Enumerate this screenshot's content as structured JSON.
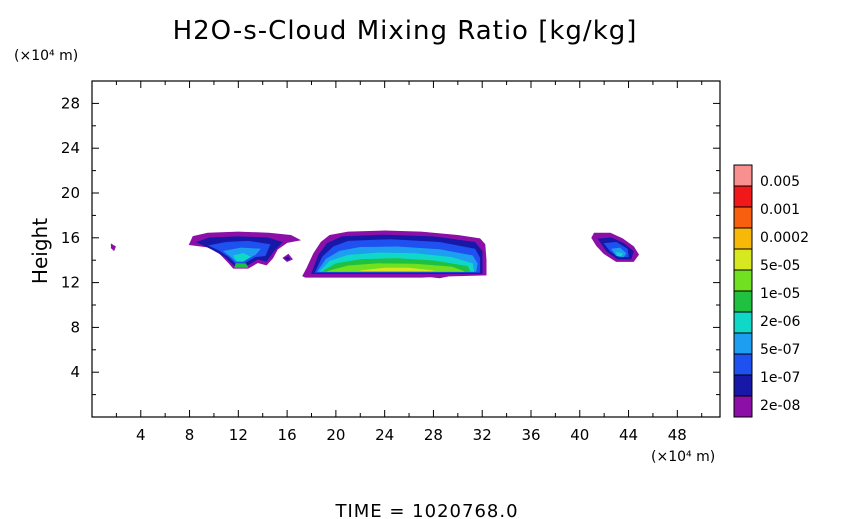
{
  "chart_data": {
    "type": "heatmap",
    "title": "H2O-s-Cloud Mixing Ratio [kg/kg]",
    "xlabel": "",
    "ylabel": "Height",
    "x_unit": "(×10⁴ m)",
    "y_unit": "(×10⁴ m)",
    "xlim": [
      0,
      51.5
    ],
    "ylim": [
      0,
      30
    ],
    "x_ticks": [
      "4",
      "8",
      "12",
      "16",
      "20",
      "24",
      "28",
      "32",
      "36",
      "40",
      "44",
      "48"
    ],
    "y_ticks": [
      "4",
      "8",
      "12",
      "16",
      "20",
      "24",
      "28"
    ],
    "footer": "TIME = 1020768.0",
    "colorbar": {
      "labels": [
        "0.005",
        "0.001",
        "0.0002",
        "5e-05",
        "1e-05",
        "2e-06",
        "5e-07",
        "1e-07",
        "2e-08"
      ],
      "colors": [
        "#8c10a8",
        "#1818a8",
        "#1f50f0",
        "#1e9ef0",
        "#10d8c8",
        "#20c040",
        "#70e020",
        "#d8e820",
        "#f8b808",
        "#f86010",
        "#f01818",
        "#f89090"
      ]
    },
    "cloud_regions": [
      {
        "name": "small-cell",
        "outline": [
          [
            1.6,
            15.4
          ],
          [
            1.9,
            15.2
          ],
          [
            1.8,
            14.9
          ],
          [
            1.6,
            15.1
          ]
        ],
        "bands": []
      },
      {
        "name": "left-cloud",
        "outline": [
          [
            8.0,
            15.4
          ],
          [
            8.3,
            16.1
          ],
          [
            9.5,
            16.4
          ],
          [
            12.0,
            16.5
          ],
          [
            14.5,
            16.4
          ],
          [
            16.3,
            16.2
          ],
          [
            17.0,
            15.8
          ],
          [
            16.0,
            15.6
          ],
          [
            15.2,
            15.0
          ],
          [
            14.8,
            14.2
          ],
          [
            14.3,
            13.6
          ],
          [
            13.6,
            13.8
          ],
          [
            12.8,
            13.3
          ],
          [
            11.6,
            13.3
          ],
          [
            11.2,
            13.8
          ],
          [
            10.5,
            14.6
          ],
          [
            9.5,
            15.2
          ]
        ],
        "bands": [
          {
            "level": 1,
            "outline": [
              [
                8.6,
                15.6
              ],
              [
                9.6,
                16.0
              ],
              [
                12.0,
                16.1
              ],
              [
                14.4,
                16.0
              ],
              [
                15.6,
                15.6
              ],
              [
                14.9,
                14.8
              ],
              [
                14.3,
                13.9
              ],
              [
                13.6,
                14.1
              ],
              [
                12.8,
                13.6
              ],
              [
                11.7,
                13.5
              ],
              [
                10.9,
                14.3
              ],
              [
                10.0,
                14.9
              ]
            ]
          },
          {
            "level": 2,
            "outline": [
              [
                9.6,
                15.3
              ],
              [
                11.0,
                15.6
              ],
              [
                12.8,
                15.7
              ],
              [
                14.6,
                15.4
              ],
              [
                14.2,
                14.4
              ],
              [
                13.4,
                14.3
              ],
              [
                12.6,
                13.8
              ],
              [
                11.8,
                13.7
              ],
              [
                11.2,
                14.3
              ],
              [
                10.4,
                14.9
              ]
            ]
          },
          {
            "level": 3,
            "outline": [
              [
                10.8,
                14.8
              ],
              [
                12.2,
                15.1
              ],
              [
                13.8,
                15.0
              ],
              [
                13.4,
                14.5
              ],
              [
                12.5,
                14.0
              ],
              [
                11.8,
                13.9
              ],
              [
                11.4,
                14.3
              ]
            ]
          },
          {
            "level": 4,
            "outline": [
              [
                11.6,
                14.4
              ],
              [
                12.4,
                14.6
              ],
              [
                13.0,
                14.3
              ],
              [
                12.4,
                13.9
              ],
              [
                11.9,
                13.9
              ]
            ]
          },
          {
            "level": 5,
            "outline": [
              [
                11.8,
                13.7
              ],
              [
                12.6,
                13.7
              ],
              [
                12.8,
                13.35
              ],
              [
                11.7,
                13.35
              ]
            ]
          }
        ]
      },
      {
        "name": "left-cloud-fragment",
        "outline": [
          [
            15.7,
            14.2
          ],
          [
            16.1,
            14.5
          ],
          [
            16.4,
            14.1
          ],
          [
            16.0,
            13.9
          ]
        ],
        "bands": [
          {
            "level": 1,
            "outline": [
              [
                15.8,
                14.2
              ],
              [
                16.1,
                14.3
              ],
              [
                16.2,
                14.1
              ],
              [
                16.0,
                14.0
              ]
            ]
          }
        ]
      },
      {
        "name": "main-cloud",
        "outline": [
          [
            17.3,
            12.6
          ],
          [
            17.6,
            13.2
          ],
          [
            18.2,
            14.6
          ],
          [
            18.8,
            15.6
          ],
          [
            19.5,
            16.2
          ],
          [
            21.0,
            16.5
          ],
          [
            24.0,
            16.6
          ],
          [
            27.0,
            16.5
          ],
          [
            30.0,
            16.2
          ],
          [
            31.8,
            15.9
          ],
          [
            32.2,
            15.4
          ],
          [
            32.3,
            14.0
          ],
          [
            32.3,
            12.7
          ],
          [
            29.0,
            12.6
          ],
          [
            27.0,
            12.5
          ],
          [
            23.0,
            12.5
          ],
          [
            19.0,
            12.5
          ],
          [
            17.5,
            12.5
          ]
        ],
        "bands": [
          {
            "level": 1,
            "outline": [
              [
                18.0,
                12.8
              ],
              [
                18.6,
                14.5
              ],
              [
                19.3,
                15.5
              ],
              [
                20.5,
                16.1
              ],
              [
                24.0,
                16.25
              ],
              [
                28.0,
                16.1
              ],
              [
                31.4,
                15.6
              ],
              [
                32.0,
                14.8
              ],
              [
                32.0,
                12.8
              ]
            ]
          },
          {
            "level": 2,
            "outline": [
              [
                18.3,
                12.9
              ],
              [
                18.9,
                14.3
              ],
              [
                19.8,
                15.2
              ],
              [
                21.0,
                15.7
              ],
              [
                24.5,
                15.85
              ],
              [
                28.5,
                15.6
              ],
              [
                31.4,
                15.0
              ],
              [
                31.8,
                14.2
              ],
              [
                31.8,
                12.9
              ]
            ]
          },
          {
            "level": 3,
            "outline": [
              [
                18.5,
                13.0
              ],
              [
                19.2,
                14.1
              ],
              [
                20.3,
                14.8
              ],
              [
                22.0,
                15.15
              ],
              [
                25.0,
                15.2
              ],
              [
                28.5,
                14.95
              ],
              [
                31.2,
                14.4
              ],
              [
                31.6,
                13.7
              ],
              [
                31.5,
                13.0
              ]
            ]
          },
          {
            "level": 4,
            "outline": [
              [
                18.7,
                13.0
              ],
              [
                19.5,
                13.9
              ],
              [
                21.0,
                14.45
              ],
              [
                23.5,
                14.65
              ],
              [
                26.5,
                14.6
              ],
              [
                29.5,
                14.25
              ],
              [
                31.2,
                13.7
              ],
              [
                31.3,
                13.0
              ]
            ]
          },
          {
            "level": 5,
            "outline": [
              [
                18.9,
                13.0
              ],
              [
                20.0,
                13.7
              ],
              [
                22.0,
                14.05
              ],
              [
                25.0,
                14.15
              ],
              [
                28.0,
                13.95
              ],
              [
                30.8,
                13.45
              ],
              [
                31.0,
                13.0
              ]
            ]
          },
          {
            "level": 6,
            "outline": [
              [
                19.3,
                13.0
              ],
              [
                21.0,
                13.5
              ],
              [
                23.5,
                13.7
              ],
              [
                26.5,
                13.65
              ],
              [
                29.5,
                13.4
              ],
              [
                30.5,
                13.0
              ]
            ]
          },
          {
            "level": 7,
            "outline": [
              [
                22.0,
                13.05
              ],
              [
                24.0,
                13.3
              ],
              [
                26.0,
                13.3
              ],
              [
                28.0,
                13.05
              ]
            ]
          }
        ]
      },
      {
        "name": "main-cloud-base",
        "outline": [
          [
            27.3,
            12.6
          ],
          [
            28.5,
            12.45
          ],
          [
            29.2,
            12.6
          ]
        ],
        "bands": []
      },
      {
        "name": "right-cloud",
        "outline": [
          [
            41.0,
            16.0
          ],
          [
            41.2,
            16.4
          ],
          [
            42.5,
            16.4
          ],
          [
            43.5,
            15.9
          ],
          [
            44.4,
            15.2
          ],
          [
            44.8,
            14.5
          ],
          [
            44.4,
            13.9
          ],
          [
            43.0,
            13.9
          ],
          [
            42.0,
            14.6
          ],
          [
            41.4,
            15.3
          ]
        ],
        "bands": [
          {
            "level": 1,
            "outline": [
              [
                41.5,
                15.9
              ],
              [
                42.6,
                16.0
              ],
              [
                43.6,
                15.5
              ],
              [
                44.4,
                14.8
              ],
              [
                44.2,
                14.1
              ],
              [
                43.1,
                14.1
              ],
              [
                42.2,
                14.8
              ]
            ]
          },
          {
            "level": 2,
            "outline": [
              [
                42.0,
                15.5
              ],
              [
                43.0,
                15.6
              ],
              [
                43.9,
                15.0
              ],
              [
                44.0,
                14.3
              ],
              [
                43.2,
                14.3
              ],
              [
                42.5,
                14.8
              ]
            ]
          },
          {
            "level": 3,
            "outline": [
              [
                42.6,
                15.0
              ],
              [
                43.3,
                15.1
              ],
              [
                43.8,
                14.6
              ],
              [
                43.6,
                14.3
              ],
              [
                43.0,
                14.4
              ]
            ]
          },
          {
            "level": 4,
            "outline": [
              [
                43.0,
                14.7
              ],
              [
                43.5,
                14.6
              ],
              [
                43.4,
                14.35
              ],
              [
                43.1,
                14.4
              ]
            ]
          }
        ]
      }
    ]
  }
}
